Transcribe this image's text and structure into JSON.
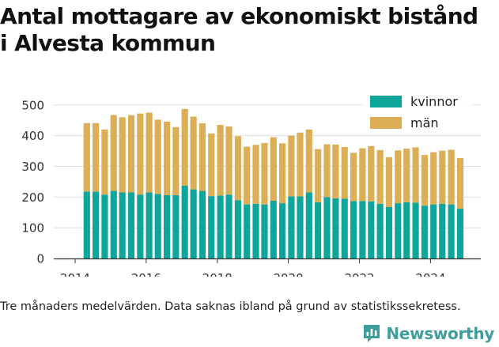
{
  "title_line1": "Antal mottagare av ekonomiskt bistånd",
  "title_line2": "i Alvesta kommun",
  "footnote": "Tre månaders medelvärden. Data saknas ibland på grund av statistikssekretess.",
  "brand": {
    "name": "Newsworthy",
    "icon": "newsworthy-logo-icon"
  },
  "colors": {
    "kvinnor": "#0ea59a",
    "man": "#dcae55",
    "grid": "#dddddd",
    "axis": "#333333"
  },
  "chart_data": {
    "type": "bar",
    "stacked": true,
    "x_ticks": [
      "2014",
      "2016",
      "2018",
      "2020",
      "2022",
      "2024"
    ],
    "y_ticks": [
      "0",
      "100",
      "200",
      "300",
      "400",
      "500"
    ],
    "ylim": [
      0,
      520
    ],
    "xlim": [
      "2014-01-01",
      "2025-06-01"
    ],
    "legend_position": "top-right",
    "x": [
      "2014-05",
      "2014-08",
      "2014-11",
      "2015-02",
      "2015-05",
      "2015-08",
      "2015-11",
      "2016-02",
      "2016-05",
      "2016-08",
      "2016-11",
      "2017-02",
      "2017-05",
      "2017-08",
      "2017-11",
      "2018-02",
      "2018-05",
      "2018-08",
      "2018-11",
      "2019-02",
      "2019-05",
      "2019-08",
      "2019-11",
      "2020-02",
      "2020-05",
      "2020-08",
      "2020-11",
      "2021-02",
      "2021-05",
      "2021-08",
      "2021-11",
      "2022-02",
      "2022-05",
      "2022-08",
      "2022-11",
      "2023-02",
      "2023-05",
      "2023-08",
      "2023-11",
      "2024-02",
      "2024-05",
      "2024-08",
      "2024-11"
    ],
    "series": [
      {
        "name": "kvinnor",
        "values": [
          218,
          218,
          208,
          220,
          215,
          215,
          208,
          215,
          210,
          206,
          206,
          237,
          225,
          220,
          203,
          205,
          208,
          190,
          176,
          178,
          176,
          188,
          180,
          202,
          202,
          215,
          183,
          200,
          196,
          195,
          187,
          187,
          186,
          178,
          168,
          180,
          183,
          182,
          172,
          176,
          178,
          176,
          162
        ]
      },
      {
        "name": "män",
        "values": [
          223,
          223,
          212,
          247,
          245,
          252,
          264,
          260,
          242,
          240,
          222,
          250,
          237,
          220,
          204,
          230,
          222,
          208,
          188,
          192,
          200,
          207,
          195,
          198,
          208,
          205,
          173,
          172,
          175,
          168,
          157,
          172,
          180,
          175,
          162,
          172,
          175,
          180,
          165,
          170,
          173,
          178,
          165
        ]
      }
    ]
  }
}
